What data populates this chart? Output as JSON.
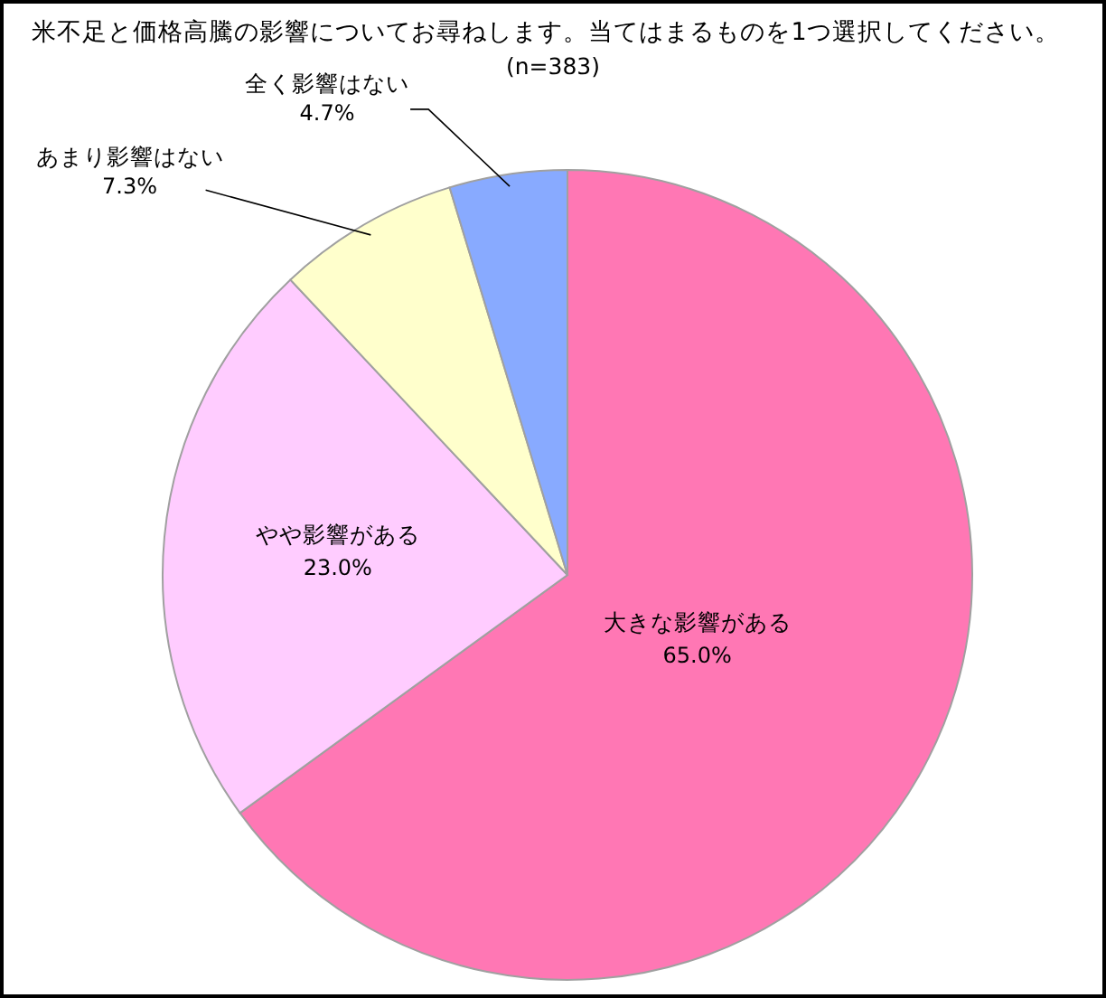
{
  "chart_data": {
    "type": "pie",
    "title": "米不足と価格高騰の影響についてお尋ねします。当てはまるものを1つ選択してください。",
    "subtitle": "(n=383)",
    "categories": [
      "大きな影響がある",
      "やや影響がある",
      "あまり影響はない",
      "全く影響はない"
    ],
    "values": [
      65.0,
      23.0,
      7.3,
      4.7
    ],
    "colors": [
      "#ff77b4",
      "#ffccff",
      "#ffffcc",
      "#88aaff"
    ],
    "value_labels": [
      "65.0%",
      "23.0%",
      "7.3%",
      "4.7%"
    ]
  }
}
